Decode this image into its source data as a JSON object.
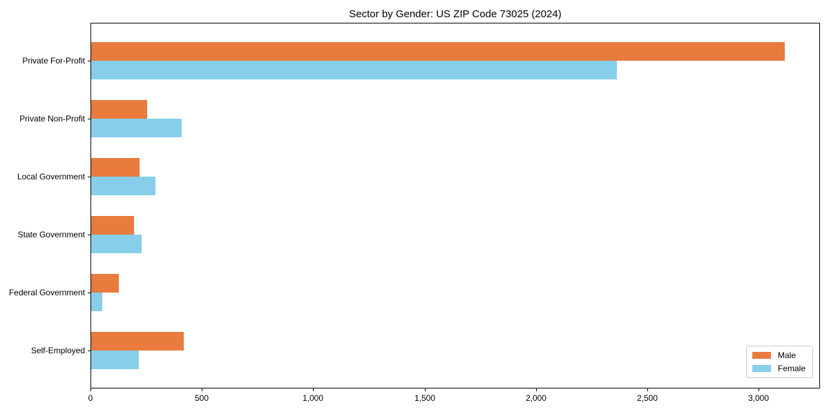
{
  "chart_data": {
    "type": "bar",
    "orientation": "horizontal",
    "title": "Sector by Gender: US ZIP Code 73025 (2024)",
    "xlabel": "",
    "ylabel": "",
    "categories": [
      "Private For-Profit",
      "Private Non-Profit",
      "Local Government",
      "State Government",
      "Federal Government",
      "Self-Employed"
    ],
    "series": [
      {
        "name": "Male",
        "color": "#E87B3D",
        "values": [
          3116,
          251,
          218,
          193,
          124,
          415
        ]
      },
      {
        "name": "Female",
        "color": "#87CEEB",
        "values": [
          2362,
          405,
          287,
          227,
          48,
          215
        ]
      }
    ],
    "xlim": [
      0,
      3276
    ],
    "xticks": [
      0,
      500,
      1000,
      1500,
      2000,
      2500,
      3000
    ],
    "xtick_labels": [
      "0",
      "500",
      "1,000",
      "1,500",
      "2,000",
      "2,500",
      "3,000"
    ],
    "grid": false,
    "legend": {
      "position": "lower right",
      "entries": [
        "Male",
        "Female"
      ]
    }
  }
}
